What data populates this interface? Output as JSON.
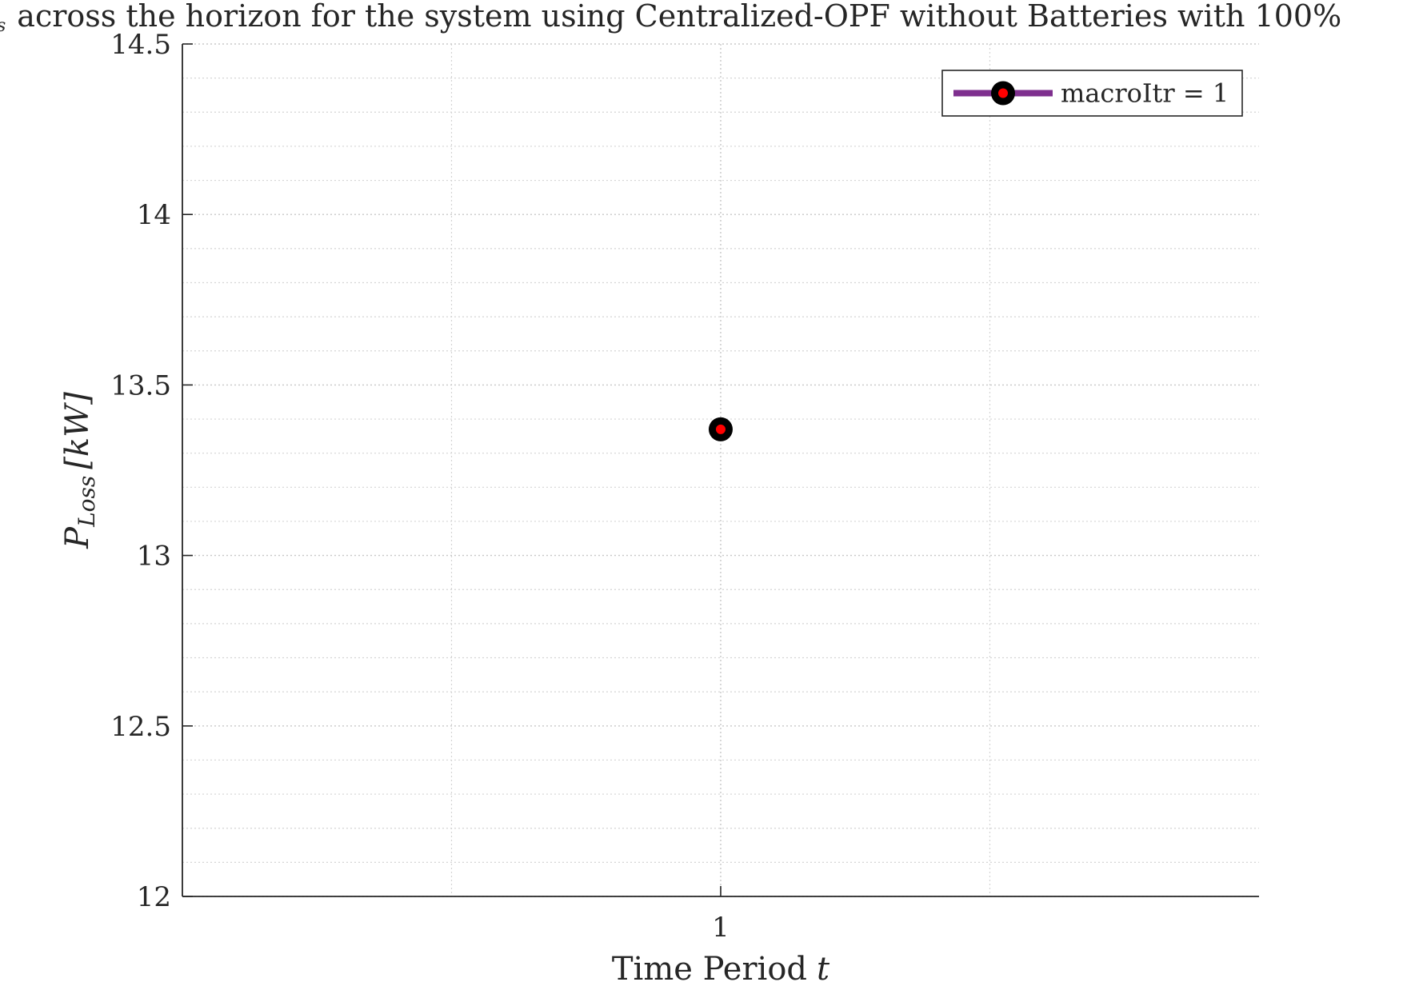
{
  "chart_data": {
    "type": "line",
    "title": "across the horizon for the system using Centralized-OPF without Batteries with 100%",
    "title_fragment_prefix": "s",
    "xlabel": "Time Period",
    "xlabel_variable": "t",
    "ylabel_main": "P",
    "ylabel_sub": "Loss",
    "ylabel_unit": "[kW]",
    "x": [
      1
    ],
    "series": [
      {
        "name": "macroItr = 1",
        "x": [
          1
        ],
        "values": [
          13.37
        ],
        "line_color": "#7e2f8e",
        "marker_edge_color": "#000000",
        "marker_face_color": "#ff0000"
      }
    ],
    "xlim": [
      0,
      2
    ],
    "ylim": [
      12,
      14.5
    ],
    "xticks": [
      1
    ],
    "xtick_labels": [
      "1"
    ],
    "yticks": [
      12,
      12.5,
      13,
      13.5,
      14,
      14.5
    ],
    "ytick_labels": [
      "12",
      "12.5",
      "13",
      "13.5",
      "14",
      "14.5"
    ],
    "grid": true,
    "minor_grid": true,
    "legend_location": "top-right"
  }
}
